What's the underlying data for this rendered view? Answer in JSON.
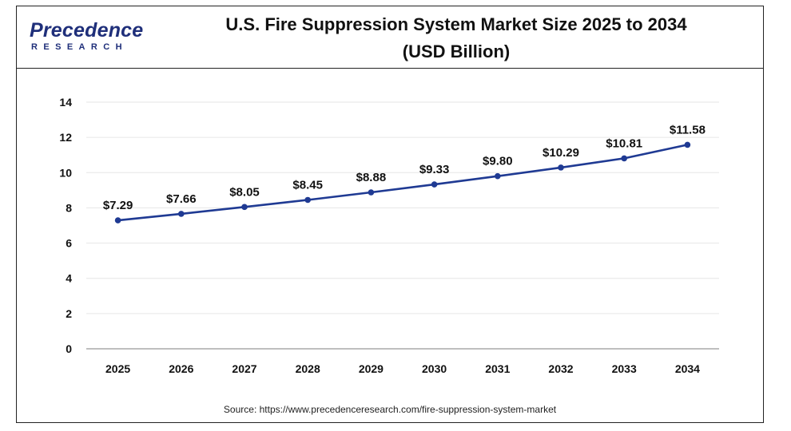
{
  "logo": {
    "line1": "Precedence",
    "line2": "RESEARCH"
  },
  "header": {
    "title_line1": "U.S. Fire Suppression System Market Size 2025 to 2034",
    "title_line2": "(USD Billion)"
  },
  "source": "Source: https://www.precedenceresearch.com/fire-suppression-system-market",
  "colors": {
    "line": "#1f3a93",
    "grid": "#e6e6e6",
    "axis": "#999999"
  },
  "chart_data": {
    "type": "line",
    "title": "U.S. Fire Suppression System Market Size 2025 to 2034 (USD Billion)",
    "x": [
      "2025",
      "2026",
      "2027",
      "2028",
      "2029",
      "2030",
      "2031",
      "2032",
      "2033",
      "2034"
    ],
    "series": [
      {
        "values": [
          7.29,
          7.66,
          8.05,
          8.45,
          8.88,
          9.33,
          9.8,
          10.29,
          10.81,
          11.58
        ],
        "labels": [
          "$7.29",
          "$7.66",
          "$8.05",
          "$8.45",
          "$8.88",
          "$9.33",
          "$9.80",
          "$10.29",
          "$10.81",
          "$11.58"
        ]
      }
    ],
    "ylim": [
      0,
      14
    ],
    "yticks": [
      "0",
      "2",
      "4",
      "6",
      "8",
      "10",
      "12",
      "14"
    ],
    "grid": true,
    "legend": "none"
  }
}
